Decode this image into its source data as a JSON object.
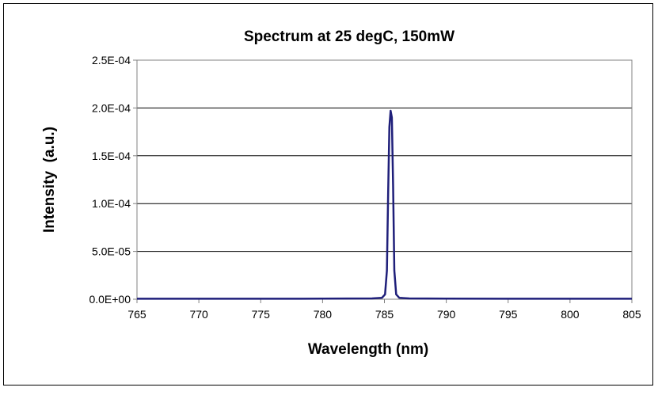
{
  "chart_data": {
    "type": "line",
    "title": "Spectrum at 25 degC, 150mW",
    "xlabel": "Wavelength (nm)",
    "ylabel": "Intensity  (a.u.)",
    "xlim": [
      765,
      805
    ],
    "ylim": [
      0,
      0.00025
    ],
    "x_ticks": [
      "765",
      "770",
      "775",
      "780",
      "785",
      "790",
      "795",
      "800",
      "805"
    ],
    "y_ticks": [
      "0.0E+00",
      "5.0E-05",
      "1.0E-04",
      "1.5E-04",
      "2.0E-04",
      "2.5E-04"
    ],
    "grid": "horizontal",
    "legend": "none",
    "series": [
      {
        "color": "#1f1f7a",
        "x": [
          765,
          770,
          775,
          780,
          784,
          784.8,
          785.05,
          785.2,
          785.3,
          785.4,
          785.5,
          785.6,
          785.7,
          785.8,
          785.95,
          786.2,
          787,
          790,
          795,
          800,
          805
        ],
        "y": [
          5e-07,
          5e-07,
          5e-07,
          6e-07,
          8e-07,
          1.5e-06,
          5e-06,
          3e-05,
          0.00011,
          0.00018,
          0.000197,
          0.00019,
          0.00012,
          3e-05,
          5e-06,
          1.5e-06,
          8e-07,
          6e-07,
          5e-07,
          5e-07,
          5e-07
        ]
      }
    ]
  }
}
